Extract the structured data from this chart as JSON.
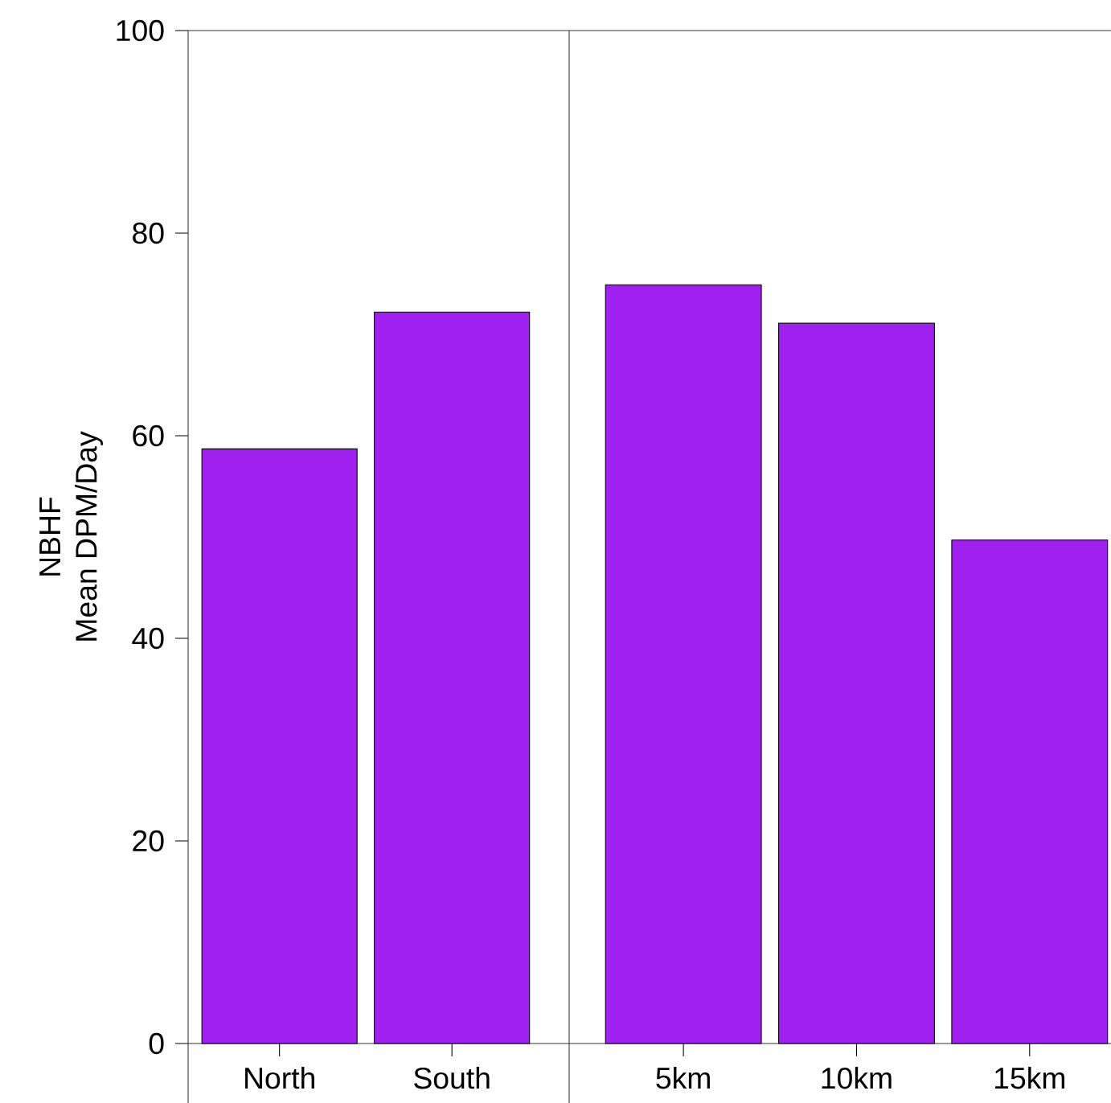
{
  "chart_data": [
    {
      "type": "bar",
      "ylabel": "NBHF Mean DPM/Day",
      "categories": [
        "North",
        "South"
      ],
      "values": [
        58.7,
        72.2
      ],
      "color": "#a020f0",
      "ylim": [
        0,
        100
      ],
      "yticks": [
        0,
        20,
        40,
        60,
        80,
        100
      ],
      "grid": false
    },
    {
      "type": "bar",
      "categories": [
        "5km",
        "10km",
        "15km"
      ],
      "values": [
        74.9,
        71.1,
        49.7
      ],
      "color": "#a020f0",
      "ylim": [
        0,
        100
      ],
      "tick_labels": "x",
      "grid": false
    }
  ]
}
